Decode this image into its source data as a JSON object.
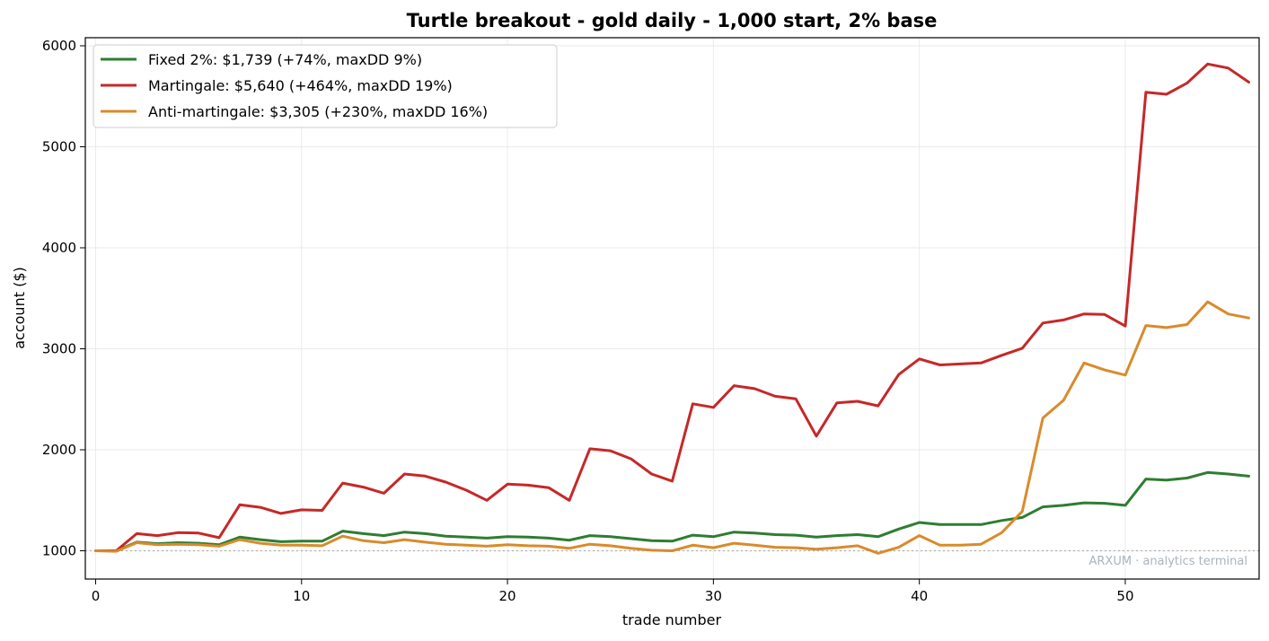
{
  "chart_data": {
    "type": "line",
    "title": "Turtle breakout - gold daily - 1,000 start, 2% base",
    "xlabel": "trade number",
    "ylabel": "account ($)",
    "xlim": [
      -0.5,
      56.5
    ],
    "ylim": [
      720,
      6080
    ],
    "xticks": [
      0,
      10,
      20,
      30,
      40,
      50
    ],
    "yticks": [
      1000,
      2000,
      3000,
      4000,
      5000,
      6000
    ],
    "grid": true,
    "legend_position": "top-left",
    "reference_line": {
      "y": 1000,
      "style": "dotted"
    },
    "watermark": "ARXUM · analytics terminal",
    "x": [
      0,
      1,
      2,
      3,
      4,
      5,
      6,
      7,
      8,
      9,
      10,
      11,
      12,
      13,
      14,
      15,
      16,
      17,
      18,
      19,
      20,
      21,
      22,
      23,
      24,
      25,
      26,
      27,
      28,
      29,
      30,
      31,
      32,
      33,
      34,
      35,
      36,
      37,
      38,
      39,
      40,
      41,
      42,
      43,
      44,
      45,
      46,
      47,
      48,
      49,
      50,
      51,
      52,
      53,
      54,
      55,
      56
    ],
    "series": [
      {
        "name": "Fixed 2%: $1,739 (+74%, maxDD 9%)",
        "color": "#2e7d32",
        "values": [
          1000,
          1000,
          1085,
          1070,
          1080,
          1075,
          1060,
          1135,
          1110,
          1090,
          1095,
          1095,
          1195,
          1170,
          1150,
          1185,
          1170,
          1145,
          1135,
          1125,
          1140,
          1135,
          1125,
          1105,
          1150,
          1140,
          1120,
          1100,
          1095,
          1155,
          1140,
          1185,
          1175,
          1160,
          1155,
          1135,
          1150,
          1160,
          1140,
          1215,
          1280,
          1260,
          1260,
          1260,
          1300,
          1330,
          1435,
          1450,
          1475,
          1470,
          1450,
          1710,
          1700,
          1720,
          1775,
          1760,
          1739
        ]
      },
      {
        "name": "Martingale: $5,640 (+464%, maxDD 19%)",
        "color": "#c62828",
        "values": [
          1000,
          1000,
          1170,
          1150,
          1180,
          1175,
          1130,
          1455,
          1430,
          1370,
          1405,
          1400,
          1670,
          1630,
          1570,
          1760,
          1740,
          1680,
          1600,
          1500,
          1660,
          1650,
          1625,
          1500,
          2010,
          1990,
          1910,
          1760,
          1690,
          2455,
          2420,
          2635,
          2605,
          2530,
          2505,
          2135,
          2465,
          2480,
          2435,
          2745,
          2900,
          2840,
          2850,
          2860,
          2935,
          3005,
          3255,
          3285,
          3345,
          3340,
          3225,
          5540,
          5520,
          5630,
          5820,
          5780,
          5640
        ]
      },
      {
        "name": "Anti-martingale: $3,305 (+230%, maxDD 16%)",
        "color": "#d98b2b",
        "values": [
          1000,
          995,
          1080,
          1060,
          1065,
          1060,
          1045,
          1110,
          1075,
          1055,
          1055,
          1050,
          1145,
          1100,
          1080,
          1110,
          1085,
          1065,
          1055,
          1045,
          1060,
          1050,
          1045,
          1025,
          1065,
          1050,
          1025,
          1005,
          1000,
          1055,
          1030,
          1075,
          1055,
          1035,
          1030,
          1015,
          1030,
          1050,
          975,
          1035,
          1150,
          1055,
          1055,
          1065,
          1180,
          1390,
          2315,
          2490,
          2860,
          2790,
          2740,
          3230,
          3210,
          3240,
          3465,
          3345,
          3305
        ]
      }
    ]
  }
}
